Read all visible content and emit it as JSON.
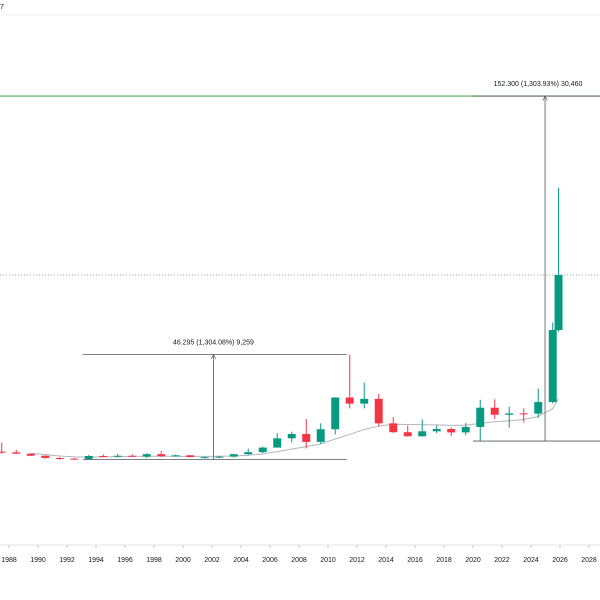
{
  "chart_data": {
    "type": "candlestick",
    "title": "7",
    "x": [
      1987.5,
      1988.5,
      1989.5,
      1990.5,
      1991.5,
      1992.5,
      1993.5,
      1994.5,
      1995.5,
      1996.5,
      1997.5,
      1998.5,
      1999.5,
      2000.5,
      2001.5,
      2002.5,
      2003.5,
      2004.5,
      2005.5,
      2006.5,
      2007.5,
      2008.5,
      2009.5,
      2010.5,
      2011.5,
      2012.5,
      2013.5,
      2014.5,
      2015.5,
      2016.5,
      2017.5,
      2018.5,
      2019.5,
      2020.5,
      2021.5,
      2022.5,
      2023.5,
      2024.5,
      2025.5,
      2025.9
    ],
    "candles": {
      "open": [
        7.0,
        6.7,
        6.1,
        5.2,
        4.2,
        3.9,
        3.7,
        5.1,
        4.9,
        5.2,
        4.8,
        5.9,
        5.0,
        5.4,
        4.6,
        4.6,
        4.8,
        5.9,
        6.8,
        8.8,
        12.9,
        14.8,
        11.3,
        16.9,
        30.9,
        28.2,
        30.3,
        19.5,
        15.6,
        13.8,
        16.0,
        17.0,
        15.5,
        17.9,
        26.4,
        23.3,
        23.9,
        23.8,
        28.9,
        60.7
      ],
      "high": [
        11.0,
        7.8,
        6.2,
        5.4,
        4.6,
        4.3,
        5.5,
        5.8,
        6.0,
        5.8,
        6.3,
        7.3,
        5.8,
        5.5,
        4.8,
        5.1,
        6.0,
        8.3,
        9.2,
        15.2,
        15.8,
        21.4,
        19.5,
        31.0,
        49.8,
        37.5,
        32.5,
        22.2,
        18.5,
        21.2,
        18.7,
        17.7,
        19.6,
        29.9,
        30.1,
        26.9,
        26.1,
        34.8,
        64.0,
        123.4
      ],
      "low": [
        6.0,
        6.0,
        5.0,
        3.9,
        3.5,
        3.6,
        3.5,
        4.6,
        4.4,
        4.7,
        4.2,
        4.7,
        4.9,
        4.6,
        4.0,
        4.2,
        4.4,
        5.5,
        6.4,
        8.8,
        11.0,
        8.4,
        10.4,
        14.6,
        26.1,
        26.1,
        18.2,
        15.3,
        13.6,
        13.6,
        15.2,
        13.9,
        14.3,
        11.6,
        21.4,
        17.6,
        19.9,
        21.9,
        28.3,
        60.0
      ],
      "close": [
        6.7,
        6.1,
        5.2,
        4.2,
        3.9,
        3.7,
        5.1,
        4.9,
        5.2,
        4.8,
        5.9,
        5.0,
        5.4,
        4.6,
        4.6,
        4.8,
        5.9,
        6.8,
        8.8,
        12.9,
        14.8,
        11.3,
        16.9,
        30.9,
        28.2,
        30.3,
        19.5,
        15.6,
        13.8,
        16.0,
        17.0,
        15.5,
        17.9,
        26.4,
        23.3,
        23.9,
        23.8,
        28.9,
        60.7,
        85.0
      ],
      "up_color": "#089981",
      "down_color": "#f23645"
    },
    "ma": {
      "color": "#b2b5be",
      "values": [
        null,
        null,
        6.3,
        5.7,
        5.1,
        4.7,
        4.6,
        4.7,
        4.8,
        4.9,
        5.0,
        5.0,
        4.9,
        4.9,
        4.9,
        5.0,
        5.1,
        5.4,
        6.0,
        7.0,
        8.1,
        9.2,
        10.4,
        12.6,
        14.6,
        16.8,
        18.3,
        19.1,
        19.0,
        18.9,
        18.8,
        18.6,
        18.7,
        19.5,
        20.2,
        20.6,
        21.2,
        22.5,
        26.0,
        30.5
      ]
    },
    "xlim": [
      1987.38,
      2028.76
    ],
    "xticks": [
      1988,
      1990,
      1992,
      1994,
      1996,
      1998,
      2000,
      2002,
      2004,
      2006,
      2008,
      2010,
      2012,
      2014,
      2016,
      2018,
      2020,
      2022,
      2024,
      2026,
      2028
    ],
    "ylim": [
      -32,
      206.4
    ],
    "hlines": [
      {
        "value": 164,
        "color": "#4caf50",
        "style": "solid"
      },
      {
        "value": 85,
        "color": "#4caf50",
        "style": "dotted"
      }
    ],
    "measurements": [
      {
        "label": "46.295 (1,304.08%) 9,259",
        "from": 3.55,
        "to": 49.85,
        "x_from": 1993.1,
        "x_to": 2011.3,
        "x_arrow": 2002.1
      },
      {
        "label": "152.300 (1,303.93%) 30,460",
        "from": 11.68,
        "to": 163.98,
        "x_from": 2020.0,
        "x_to": 2028.76,
        "x_arrow": 2024.97
      }
    ]
  }
}
